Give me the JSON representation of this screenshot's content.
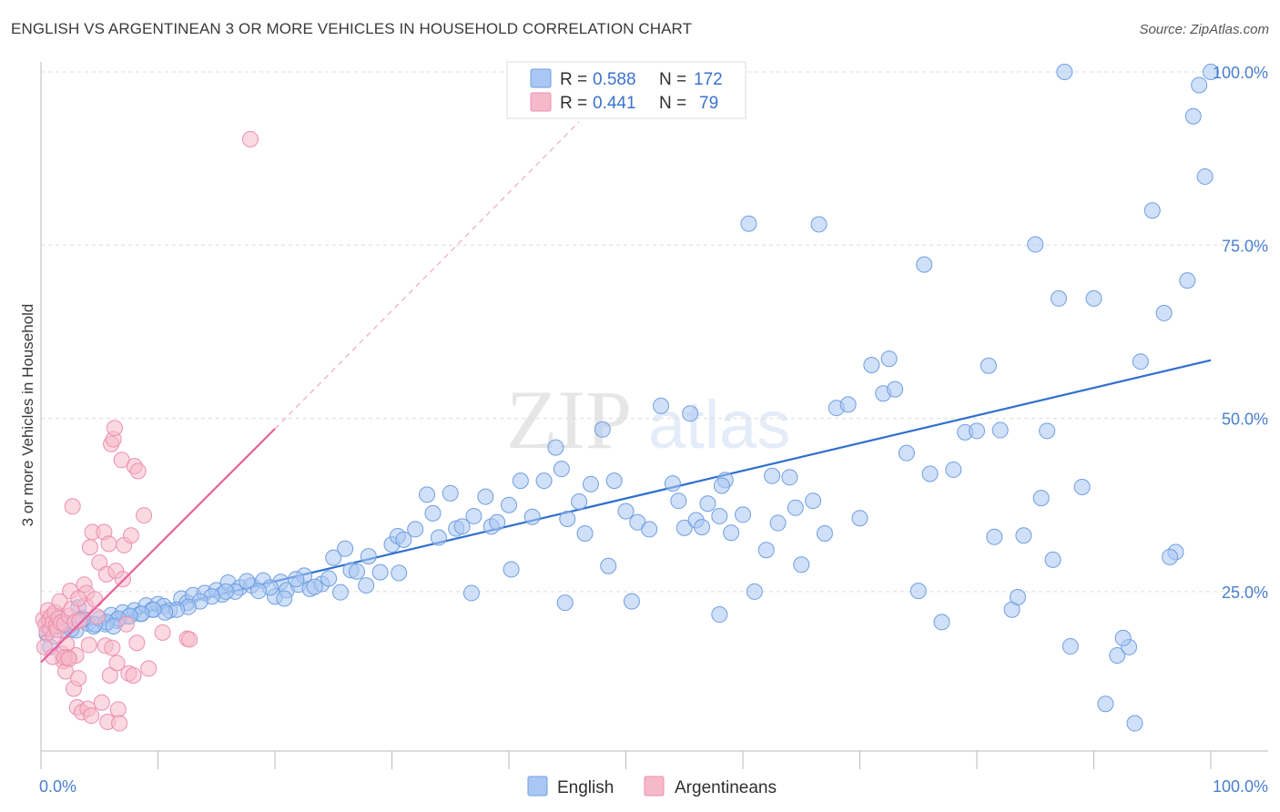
{
  "header": {
    "title": "ENGLISH VS ARGENTINEAN 3 OR MORE VEHICLES IN HOUSEHOLD CORRELATION CHART",
    "source": "Source: ZipAtlas.com"
  },
  "watermark": {
    "zip": "ZIP",
    "atlas": "atlas"
  },
  "colors": {
    "english_fill": "#a9c7f2",
    "english_stroke": "#6f9fe0",
    "english_line": "#2f6fcf",
    "argentinean_fill": "#f6b9cc",
    "argentinean_stroke": "#ec8fac",
    "argentinean_line": "#e8609a",
    "grid": "#dcdcdc",
    "tick_text": "#4a7fd0"
  },
  "legend": {
    "rows": [
      {
        "r_label": "R =",
        "r_value": "0.588",
        "n_label": "N =",
        "n_value": "172"
      },
      {
        "r_label": "R =",
        "r_value": "0.441",
        "n_label": "N =",
        "n_value": "79"
      }
    ]
  },
  "bottom_legend": {
    "english": "English",
    "argentineans": "Argentineans"
  },
  "chart_data": {
    "type": "scatter",
    "title": "ENGLISH VS ARGENTINEAN 3 OR MORE VEHICLES IN HOUSEHOLD CORRELATION CHART",
    "ylabel": "3 or more Vehicles in Household",
    "xlim": [
      0,
      100
    ],
    "ylim": [
      0,
      105
    ],
    "x_tick_labels": [
      "0.0%",
      "100.0%"
    ],
    "y_tick_labels": [
      "25.0%",
      "50.0%",
      "75.0%",
      "100.0%"
    ],
    "y_tick_values": [
      25,
      50,
      75,
      100
    ],
    "grid": "dashed horizontal",
    "legend_placement": "top-center",
    "series": [
      {
        "name": "English",
        "r": 0.588,
        "n": 172,
        "trend": {
          "x": [
            0,
            100
          ],
          "y": [
            18.5,
            58.4
          ]
        },
        "points": [
          [
            0.5,
            18.9
          ],
          [
            1.0,
            20.7
          ],
          [
            1.5,
            21.0
          ],
          [
            2.0,
            19.3
          ],
          [
            2.5,
            20.1
          ],
          [
            3.0,
            19.4
          ],
          [
            3.5,
            21.2
          ],
          [
            4.0,
            20.4
          ],
          [
            4.5,
            20.0
          ],
          [
            5.0,
            21.1
          ],
          [
            5.5,
            20.3
          ],
          [
            6.0,
            21.6
          ],
          [
            6.5,
            20.8
          ],
          [
            7.0,
            22.0
          ],
          [
            7.5,
            21.4
          ],
          [
            8.0,
            22.3
          ],
          [
            8.5,
            21.8
          ],
          [
            9.0,
            23.0
          ],
          [
            9.5,
            22.4
          ],
          [
            10.0,
            23.2
          ],
          [
            10.5,
            22.9
          ],
          [
            11.0,
            22.3
          ],
          [
            12.0,
            24.0
          ],
          [
            12.5,
            23.4
          ],
          [
            13.0,
            24.5
          ],
          [
            14.0,
            24.8
          ],
          [
            15.0,
            25.2
          ],
          [
            15.5,
            24.6
          ],
          [
            16.0,
            26.3
          ],
          [
            17.0,
            25.6
          ],
          [
            18.0,
            25.9
          ],
          [
            19.0,
            26.6
          ],
          [
            20.0,
            24.3
          ],
          [
            20.5,
            26.4
          ],
          [
            21.0,
            25.2
          ],
          [
            22.0,
            26.0
          ],
          [
            22.5,
            27.3
          ],
          [
            23.0,
            25.4
          ],
          [
            24.0,
            26.1
          ],
          [
            25.0,
            29.9
          ],
          [
            26.0,
            31.2
          ],
          [
            26.5,
            28.1
          ],
          [
            27.0,
            27.9
          ],
          [
            28.0,
            30.1
          ],
          [
            29.0,
            27.8
          ],
          [
            30.0,
            31.8
          ],
          [
            30.5,
            33.0
          ],
          [
            31.0,
            32.5
          ],
          [
            32.0,
            34.0
          ],
          [
            33.0,
            39.0
          ],
          [
            33.5,
            36.3
          ],
          [
            34.0,
            32.8
          ],
          [
            35.0,
            39.2
          ],
          [
            35.5,
            34.1
          ],
          [
            36.0,
            34.4
          ],
          [
            37.0,
            35.9
          ],
          [
            38.0,
            38.7
          ],
          [
            38.5,
            34.4
          ],
          [
            39.0,
            35.0
          ],
          [
            40.0,
            37.5
          ],
          [
            41.0,
            41.0
          ],
          [
            42.0,
            35.8
          ],
          [
            43.0,
            41.0
          ],
          [
            44.0,
            45.8
          ],
          [
            44.5,
            42.7
          ],
          [
            45.0,
            35.5
          ],
          [
            46.0,
            38.0
          ],
          [
            46.5,
            33.4
          ],
          [
            47.0,
            40.5
          ],
          [
            48.0,
            48.4
          ],
          [
            49.0,
            41.0
          ],
          [
            50.0,
            36.6
          ],
          [
            51.0,
            35.0
          ],
          [
            52.0,
            34.0
          ],
          [
            53.0,
            51.8
          ],
          [
            54.0,
            40.6
          ],
          [
            54.5,
            38.1
          ],
          [
            55.0,
            34.2
          ],
          [
            56.0,
            35.3
          ],
          [
            56.5,
            34.3
          ],
          [
            57.0,
            37.7
          ],
          [
            58.0,
            35.9
          ],
          [
            58.5,
            41.1
          ],
          [
            59.0,
            33.5
          ],
          [
            60.0,
            36.1
          ],
          [
            61.0,
            25.0
          ],
          [
            62.0,
            31.0
          ],
          [
            62.5,
            41.7
          ],
          [
            63.0,
            34.9
          ],
          [
            64.0,
            41.5
          ],
          [
            64.5,
            37.1
          ],
          [
            65.0,
            28.9
          ],
          [
            66.0,
            38.1
          ],
          [
            67.0,
            33.4
          ],
          [
            68.0,
            51.5
          ],
          [
            69.0,
            52.0
          ],
          [
            70.0,
            35.6
          ],
          [
            71.0,
            57.7
          ],
          [
            72.0,
            53.6
          ],
          [
            73.0,
            54.2
          ],
          [
            74.0,
            45.0
          ],
          [
            75.0,
            25.1
          ],
          [
            75.5,
            72.2
          ],
          [
            76.0,
            42.0
          ],
          [
            77.0,
            20.6
          ],
          [
            78.0,
            42.6
          ],
          [
            79.0,
            48.0
          ],
          [
            80.0,
            48.2
          ],
          [
            81.0,
            57.6
          ],
          [
            81.5,
            32.9
          ],
          [
            82.0,
            48.3
          ],
          [
            83.0,
            22.4
          ],
          [
            83.5,
            24.2
          ],
          [
            84.0,
            33.1
          ],
          [
            85.0,
            75.1
          ],
          [
            85.5,
            38.5
          ],
          [
            86.0,
            48.2
          ],
          [
            87.0,
            67.3
          ],
          [
            88.0,
            17.1
          ],
          [
            89.0,
            40.1
          ],
          [
            90.0,
            67.3
          ],
          [
            91.0,
            8.8
          ],
          [
            92.0,
            15.8
          ],
          [
            93.0,
            17.0
          ],
          [
            94.0,
            58.2
          ],
          [
            95.0,
            80.0
          ],
          [
            96.0,
            65.2
          ],
          [
            97.0,
            30.7
          ],
          [
            98.0,
            69.9
          ],
          [
            98.5,
            93.6
          ],
          [
            99.0,
            98.1
          ],
          [
            99.5,
            84.9
          ],
          [
            100.0,
            100.0
          ],
          [
            93.5,
            6.0
          ],
          [
            86.5,
            29.6
          ],
          [
            92.5,
            18.3
          ],
          [
            96.5,
            30.0
          ],
          [
            66.5,
            78.0
          ],
          [
            60.5,
            78.1
          ],
          [
            87.5,
            100.0
          ],
          [
            72.5,
            58.6
          ],
          [
            58.2,
            40.3
          ],
          [
            55.5,
            50.7
          ],
          [
            50.5,
            23.6
          ],
          [
            48.5,
            28.7
          ],
          [
            44.8,
            23.4
          ],
          [
            40.2,
            28.2
          ],
          [
            36.8,
            24.8
          ],
          [
            30.6,
            27.7
          ],
          [
            27.8,
            25.9
          ],
          [
            25.6,
            24.9
          ],
          [
            24.6,
            26.9
          ],
          [
            23.4,
            25.7
          ],
          [
            21.8,
            26.8
          ],
          [
            20.8,
            24.0
          ],
          [
            19.6,
            25.6
          ],
          [
            18.6,
            25.1
          ],
          [
            17.6,
            26.5
          ],
          [
            16.6,
            25.0
          ],
          [
            15.8,
            25.0
          ],
          [
            14.6,
            24.3
          ],
          [
            13.6,
            23.6
          ],
          [
            12.6,
            22.8
          ],
          [
            11.6,
            22.4
          ],
          [
            10.6,
            22.0
          ],
          [
            9.6,
            22.4
          ],
          [
            8.6,
            21.8
          ],
          [
            7.6,
            21.5
          ],
          [
            6.6,
            21.1
          ],
          [
            5.6,
            20.6
          ],
          [
            4.6,
            20.3
          ],
          [
            3.6,
            21.1
          ],
          [
            2.6,
            19.6
          ],
          [
            1.6,
            20.1
          ],
          [
            0.8,
            17.0
          ],
          [
            3.2,
            22.7
          ],
          [
            6.2,
            20.0
          ],
          [
            58.0,
            21.7
          ]
        ]
      },
      {
        "name": "Argentineans",
        "r": 0.441,
        "n": 79,
        "trend": {
          "x": [
            0,
            20
          ],
          "y": [
            14.8,
            48.5
          ],
          "dash_to": [
            46,
            92.8
          ]
        },
        "points": [
          [
            0.2,
            21.0
          ],
          [
            0.4,
            20.2
          ],
          [
            0.5,
            19.1
          ],
          [
            0.6,
            22.3
          ],
          [
            0.7,
            20.9
          ],
          [
            0.8,
            19.6
          ],
          [
            0.9,
            21.5
          ],
          [
            1.0,
            20.5
          ],
          [
            1.1,
            18.6
          ],
          [
            1.2,
            22.0
          ],
          [
            1.3,
            20.1
          ],
          [
            1.4,
            19.5
          ],
          [
            1.5,
            21.2
          ],
          [
            1.6,
            23.6
          ],
          [
            1.7,
            20.5
          ],
          [
            1.8,
            16.0
          ],
          [
            1.9,
            15.0
          ],
          [
            2.0,
            20.3
          ],
          [
            2.1,
            13.5
          ],
          [
            2.2,
            17.4
          ],
          [
            2.3,
            15.5
          ],
          [
            2.4,
            21.5
          ],
          [
            2.5,
            25.1
          ],
          [
            2.6,
            22.5
          ],
          [
            2.7,
            37.3
          ],
          [
            2.8,
            11.0
          ],
          [
            2.9,
            20.6
          ],
          [
            3.0,
            15.8
          ],
          [
            3.1,
            8.3
          ],
          [
            3.2,
            12.5
          ],
          [
            3.3,
            20.8
          ],
          [
            3.5,
            7.6
          ],
          [
            3.7,
            26.0
          ],
          [
            3.8,
            23.0
          ],
          [
            3.9,
            24.8
          ],
          [
            4.0,
            8.1
          ],
          [
            4.1,
            17.3
          ],
          [
            4.2,
            31.4
          ],
          [
            4.3,
            7.1
          ],
          [
            4.4,
            33.6
          ],
          [
            4.6,
            23.9
          ],
          [
            4.8,
            21.4
          ],
          [
            5.0,
            29.2
          ],
          [
            5.2,
            9.0
          ],
          [
            5.4,
            33.6
          ],
          [
            5.5,
            17.2
          ],
          [
            5.6,
            27.5
          ],
          [
            5.7,
            6.2
          ],
          [
            5.8,
            31.9
          ],
          [
            5.9,
            12.9
          ],
          [
            6.0,
            46.3
          ],
          [
            6.1,
            16.9
          ],
          [
            6.2,
            47.0
          ],
          [
            6.3,
            48.6
          ],
          [
            6.4,
            28.0
          ],
          [
            6.5,
            14.7
          ],
          [
            6.6,
            8.0
          ],
          [
            6.7,
            6.0
          ],
          [
            6.9,
            44.0
          ],
          [
            7.0,
            26.8
          ],
          [
            7.1,
            31.7
          ],
          [
            7.3,
            20.3
          ],
          [
            7.5,
            13.2
          ],
          [
            7.7,
            33.1
          ],
          [
            7.9,
            12.9
          ],
          [
            8.0,
            43.1
          ],
          [
            8.2,
            17.6
          ],
          [
            8.3,
            42.4
          ],
          [
            8.8,
            36.0
          ],
          [
            9.2,
            13.9
          ],
          [
            10.4,
            19.1
          ],
          [
            12.5,
            18.2
          ],
          [
            12.7,
            18.1
          ],
          [
            17.9,
            90.3
          ],
          [
            0.3,
            17.0
          ],
          [
            1.0,
            15.6
          ],
          [
            2.0,
            15.5
          ],
          [
            2.4,
            15.3
          ],
          [
            3.2,
            24.0
          ]
        ]
      }
    ]
  }
}
